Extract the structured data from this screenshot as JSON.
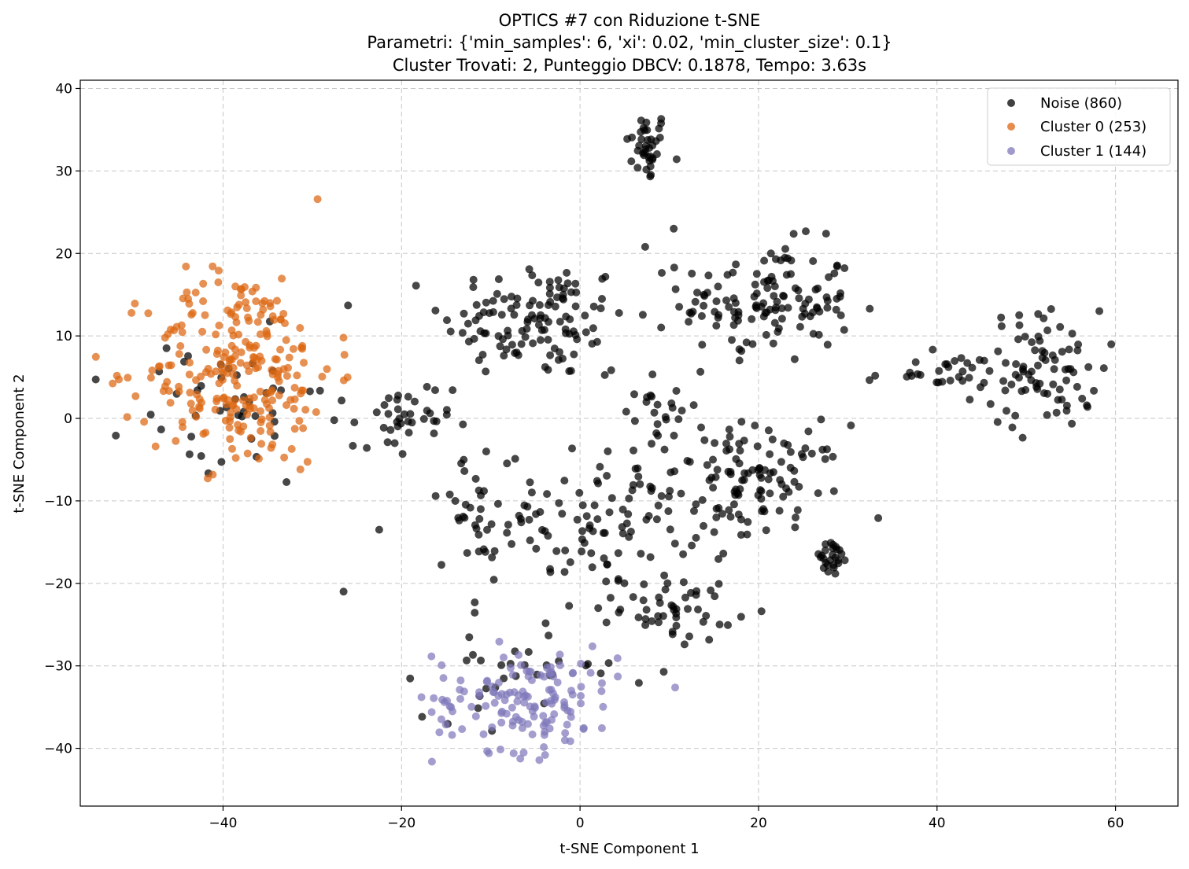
{
  "chart_data": {
    "type": "scatter",
    "title": [
      "OPTICS #7 con Riduzione t-SNE",
      "Parametri: {'min_samples': 6, 'xi': 0.02, 'min_cluster_size': 0.1}",
      "Cluster Trovati: 2, Punteggio DBCV: 0.1878, Tempo: 3.63s"
    ],
    "xlabel": "t-SNE Component 1",
    "ylabel": "t-SNE Component 2",
    "xlim": [
      -56,
      67
    ],
    "ylim": [
      -47,
      41
    ],
    "xticks": [
      -40,
      -20,
      0,
      20,
      40,
      60
    ],
    "yticks": [
      -40,
      -30,
      -20,
      -10,
      0,
      10,
      20,
      30,
      40
    ],
    "xtick_labels": [
      "−40",
      "−20",
      "0",
      "20",
      "40",
      "60"
    ],
    "ytick_labels": [
      "−40",
      "−30",
      "−20",
      "−10",
      "0",
      "10",
      "20",
      "30",
      "40"
    ],
    "grid": true,
    "legend_position": "top-right",
    "series": [
      {
        "name": "Noise (860)",
        "color": "#000000",
        "marker": "circle",
        "clusters": [
          {
            "cx": 7.5,
            "cy": 33,
            "sx": 1.5,
            "sy": 2.7,
            "n": 38
          },
          {
            "cx": -5,
            "cy": 12,
            "sx": 6.5,
            "sy": 4.5,
            "n": 120
          },
          {
            "cx": 21,
            "cy": 14,
            "sx": 6,
            "sy": 4.5,
            "n": 130
          },
          {
            "cx": 52,
            "cy": 6,
            "sx": 4,
            "sy": 4.5,
            "n": 80
          },
          {
            "cx": 40,
            "cy": 5.5,
            "sx": 5,
            "sy": 1.4,
            "n": 30
          },
          {
            "cx": 20,
            "cy": -8,
            "sx": 6,
            "sy": 4.5,
            "n": 110
          },
          {
            "cx": 2,
            "cy": -12,
            "sx": 7,
            "sy": 5,
            "n": 100
          },
          {
            "cx": 11,
            "cy": -23,
            "sx": 4,
            "sy": 2.5,
            "n": 50
          },
          {
            "cx": -20,
            "cy": -1,
            "sx": 3.5,
            "sy": 3.5,
            "n": 40
          },
          {
            "cx": 28,
            "cy": -17,
            "sx": 1.5,
            "sy": 1.5,
            "n": 25
          },
          {
            "cx": -12,
            "cy": -11,
            "sx": 2.5,
            "sy": 4,
            "n": 30
          },
          {
            "cx": -6,
            "cy": -30,
            "sx": 7,
            "sy": 4,
            "n": 35
          },
          {
            "cx": -40,
            "cy": 0,
            "sx": 7,
            "sy": 6,
            "n": 45
          },
          {
            "cx": 8,
            "cy": 2,
            "sx": 3.5,
            "sy": 4,
            "n": 27
          }
        ],
        "extra_points": [
          [
            -26.5,
            -21
          ],
          [
            -22.5,
            -13.5
          ],
          [
            10.5,
            23
          ],
          [
            7.3,
            20.8
          ]
        ]
      },
      {
        "name": "Cluster 0 (253)",
        "color": "#dd6611",
        "marker": "circle",
        "clusters": [
          {
            "cx": -38,
            "cy": 6,
            "sx": 6.5,
            "sy": 7.5,
            "n": 253
          }
        ]
      },
      {
        "name": "Cluster 1 (144)",
        "color": "#8078bb",
        "marker": "circle",
        "clusters": [
          {
            "cx": -6,
            "cy": -34,
            "sx": 6.5,
            "sy": 4,
            "n": 144
          }
        ]
      }
    ]
  }
}
